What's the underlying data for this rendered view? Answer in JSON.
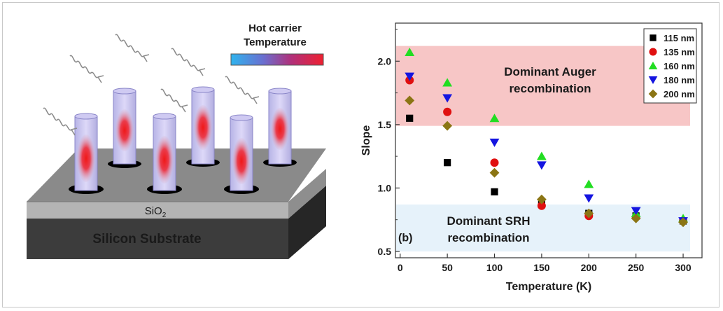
{
  "schematic": {
    "colorbar_title_line1": "Hot carrier",
    "colorbar_title_line2": "Temperature",
    "layer_oxide": "SiO",
    "layer_oxide_subscript": "2",
    "layer_substrate": "Silicon Substrate"
  },
  "chart_data": {
    "type": "scatter",
    "xlabel": "Temperature (K)",
    "ylabel": "Slope",
    "xlim": [
      -5,
      320
    ],
    "ylim": [
      0.45,
      2.3
    ],
    "xticks": [
      0,
      50,
      100,
      150,
      200,
      250,
      300
    ],
    "yticks": [
      0.5,
      1.0,
      1.5,
      2.0
    ],
    "xtick_labels": [
      "0",
      "50",
      "100",
      "150",
      "200",
      "250",
      "300"
    ],
    "ytick_labels": [
      "0.5",
      "1.0",
      "1.5",
      "2.0"
    ],
    "panel_label": "(b)",
    "legend_position": "top-right",
    "regions": [
      {
        "label_line1": "Dominant Auger",
        "label_line2": "recombination",
        "y_range": [
          1.49,
          2.12
        ],
        "color": "#f7c6c6"
      },
      {
        "label_line1": "Dominant SRH",
        "label_line2": "recombination",
        "y_range": [
          0.5,
          0.87
        ],
        "color": "#e6f2fa"
      }
    ],
    "series": [
      {
        "name": "115 nm",
        "marker": "square",
        "color": "#000000",
        "x": [
          10,
          50,
          100,
          150,
          200,
          250,
          300
        ],
        "y": [
          1.55,
          1.2,
          0.97,
          0.87,
          0.8,
          0.78,
          0.74
        ]
      },
      {
        "name": "135 nm",
        "marker": "circle",
        "color": "#e01010",
        "x": [
          10,
          50,
          100,
          150,
          200,
          250,
          300
        ],
        "y": [
          1.85,
          1.6,
          1.2,
          0.86,
          0.78,
          0.77,
          0.74
        ]
      },
      {
        "name": "160 nm",
        "marker": "triangle-up",
        "color": "#22dd22",
        "x": [
          10,
          50,
          100,
          150,
          200,
          250,
          300
        ],
        "y": [
          2.07,
          1.83,
          1.55,
          1.25,
          1.03,
          0.8,
          0.76
        ]
      },
      {
        "name": "180 nm",
        "marker": "triangle-down",
        "color": "#1515e0",
        "x": [
          10,
          50,
          100,
          150,
          200,
          250,
          300
        ],
        "y": [
          1.88,
          1.71,
          1.36,
          1.18,
          0.92,
          0.82,
          0.74
        ]
      },
      {
        "name": "200 nm",
        "marker": "diamond",
        "color": "#8b7514",
        "x": [
          10,
          50,
          100,
          150,
          200,
          250,
          300
        ],
        "y": [
          1.69,
          1.49,
          1.12,
          0.91,
          0.8,
          0.76,
          0.73
        ]
      }
    ]
  }
}
